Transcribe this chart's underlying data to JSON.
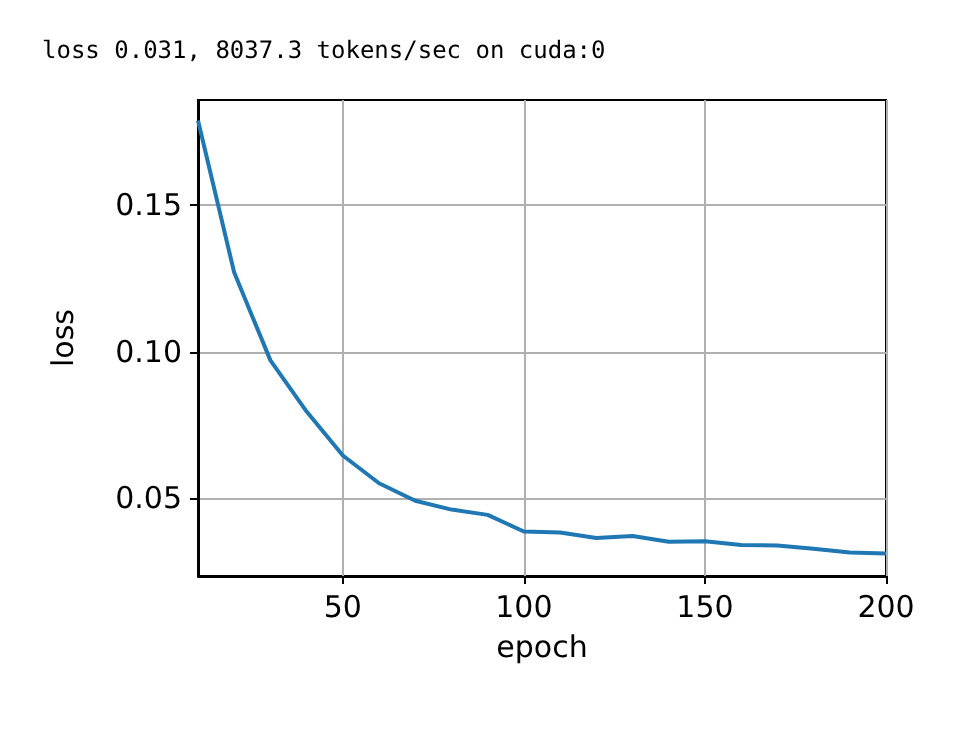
{
  "chart_data": {
    "type": "line",
    "title": "loss 0.031, 8037.3 tokens/sec on cuda:0",
    "xlabel": "epoch",
    "ylabel": "loss",
    "x": [
      10,
      20,
      30,
      40,
      50,
      60,
      70,
      80,
      90,
      100,
      110,
      120,
      130,
      140,
      150,
      160,
      170,
      180,
      190,
      200
    ],
    "series": [
      {
        "color": "#1f77b4",
        "values": [
          0.179,
          0.127,
          0.097,
          0.0795,
          0.0645,
          0.055,
          0.049,
          0.046,
          0.0442,
          0.0385,
          0.0382,
          0.0363,
          0.037,
          0.035,
          0.0352,
          0.0339,
          0.0337,
          0.0326,
          0.0313,
          0.031
        ]
      }
    ],
    "xlim": [
      10,
      200
    ],
    "xticks": [
      50,
      100,
      150,
      200
    ],
    "ylim": [
      0.0233,
      0.186
    ],
    "yticks": [
      0.05,
      {
        "value": 0.1,
        "label": "0.10"
      },
      0.15
    ],
    "grid": true,
    "marker": "none",
    "line_style": "solid"
  }
}
